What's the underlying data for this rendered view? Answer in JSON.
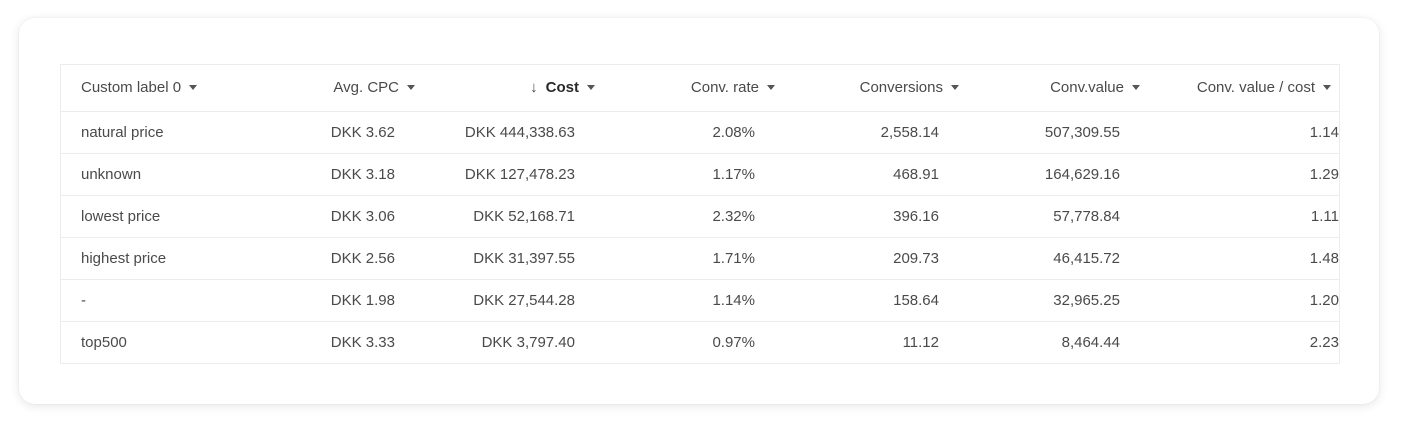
{
  "table": {
    "columns": [
      {
        "key": "label",
        "title": "Custom label 0"
      },
      {
        "key": "avg_cpc",
        "title": "Avg. CPC"
      },
      {
        "key": "cost",
        "title": "Cost",
        "sorted": "desc"
      },
      {
        "key": "conv_rate",
        "title": "Conv. rate"
      },
      {
        "key": "conversions",
        "title": "Conversions"
      },
      {
        "key": "conv_value",
        "title": "Conv.value"
      },
      {
        "key": "conv_value_cost",
        "title": "Conv. value / cost"
      }
    ],
    "icons": {
      "sort": "arrow-down-icon",
      "dropdown": "caret-down-icon"
    },
    "sort_arrow_glyph": "↓",
    "rows": [
      {
        "label": "natural price",
        "avg_cpc": "DKK 3.62",
        "cost": "DKK 444,338.63",
        "conv_rate": "2.08%",
        "conversions": "2,558.14",
        "conv_value": "507,309.55",
        "conv_value_cost": "1.14"
      },
      {
        "label": "unknown",
        "avg_cpc": "DKK 3.18",
        "cost": "DKK 127,478.23",
        "conv_rate": "1.17%",
        "conversions": "468.91",
        "conv_value": "164,629.16",
        "conv_value_cost": "1.29"
      },
      {
        "label": "lowest price",
        "avg_cpc": "DKK 3.06",
        "cost": "DKK 52,168.71",
        "conv_rate": "2.32%",
        "conversions": "396.16",
        "conv_value": "57,778.84",
        "conv_value_cost": "1.11"
      },
      {
        "label": "highest price",
        "avg_cpc": "DKK 2.56",
        "cost": "DKK 31,397.55",
        "conv_rate": "1.71%",
        "conversions": "209.73",
        "conv_value": "46,415.72",
        "conv_value_cost": "1.48"
      },
      {
        "label": "-",
        "avg_cpc": "DKK 1.98",
        "cost": "DKK 27,544.28",
        "conv_rate": "1.14%",
        "conversions": "158.64",
        "conv_value": "32,965.25",
        "conv_value_cost": "1.20"
      },
      {
        "label": "top500",
        "avg_cpc": "DKK 3.33",
        "cost": "DKK 3,797.40",
        "conv_rate": "0.97%",
        "conversions": "11.12",
        "conv_value": "8,464.44",
        "conv_value_cost": "2.23"
      }
    ]
  }
}
